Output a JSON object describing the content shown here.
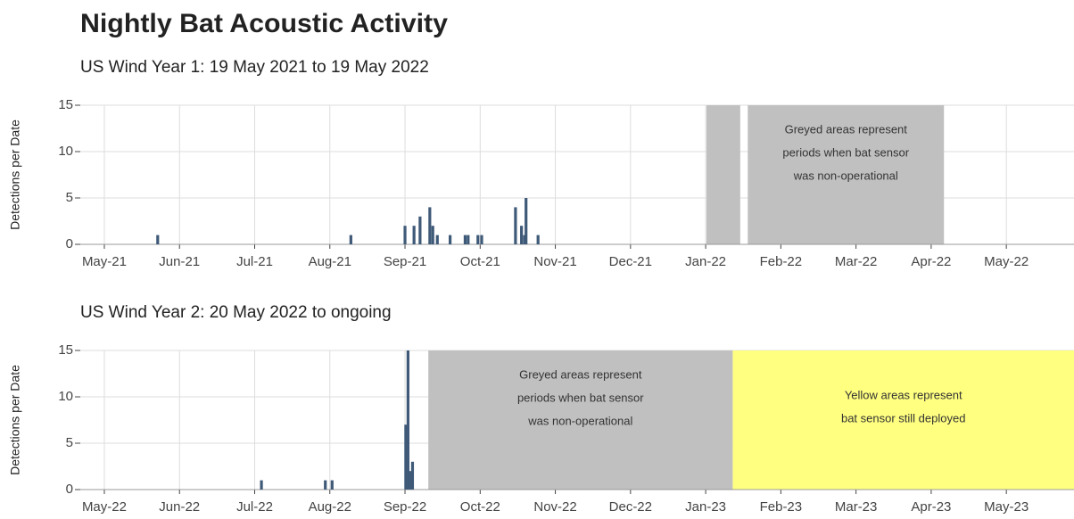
{
  "title": "Nightly Bat Acoustic Activity",
  "chart_data": [
    {
      "type": "bar",
      "subtitle": "US Wind Year 1: 19 May 2021 to 19 May 2022",
      "ylabel": "Detections per Date",
      "color": "#3f5a78",
      "grid": true,
      "x": [
        0.71,
        3.28,
        4.0,
        4.12,
        4.2,
        4.33,
        4.37,
        4.43,
        4.6,
        4.8,
        4.84,
        4.97,
        5.02,
        5.47,
        5.55,
        5.59,
        5.61,
        5.77
      ],
      "values": [
        1,
        1,
        2,
        2,
        3,
        4,
        2,
        1,
        1,
        1,
        1,
        1,
        1,
        4,
        2,
        1,
        5,
        1
      ],
      "xlim": [
        -0.32,
        12.9
      ],
      "ylim": [
        0,
        15
      ],
      "yticks": [
        0,
        5,
        10,
        15
      ],
      "xticks": [
        {
          "value": 0,
          "label": "May-21"
        },
        {
          "value": 1,
          "label": "Jun-21"
        },
        {
          "value": 2,
          "label": "Jul-21"
        },
        {
          "value": 3,
          "label": "Aug-21"
        },
        {
          "value": 4,
          "label": "Sep-21"
        },
        {
          "value": 5,
          "label": "Oct-21"
        },
        {
          "value": 6,
          "label": "Nov-21"
        },
        {
          "value": 7,
          "label": "Dec-21"
        },
        {
          "value": 8,
          "label": "Jan-22"
        },
        {
          "value": 9,
          "label": "Feb-22"
        },
        {
          "value": 10,
          "label": "Mar-22"
        },
        {
          "value": 11,
          "label": "Apr-22"
        },
        {
          "value": 12,
          "label": "May-22"
        }
      ],
      "regions": [
        {
          "start": 8.01,
          "end": 8.46,
          "color": "#c0c0c0"
        },
        {
          "start": 8.56,
          "end": 11.17,
          "color": "#c0c0c0",
          "label": [
            "Greyed areas represent",
            "periods when bat sensor",
            "was non-operational"
          ]
        }
      ]
    },
    {
      "type": "bar",
      "subtitle": "US Wind Year 2: 20 May 2022 to ongoing",
      "ylabel": "Detections per Date",
      "color": "#3f5a78",
      "grid": true,
      "x": [
        2.09,
        2.94,
        3.03,
        4.01,
        4.04,
        4.07,
        4.1
      ],
      "values": [
        1,
        1,
        1,
        7,
        15,
        2,
        3
      ],
      "xlim": [
        -0.32,
        12.9
      ],
      "ylim": [
        0,
        15
      ],
      "yticks": [
        0,
        5,
        10,
        15
      ],
      "xticks": [
        {
          "value": 0,
          "label": "May-22"
        },
        {
          "value": 1,
          "label": "Jun-22"
        },
        {
          "value": 2,
          "label": "Jul-22"
        },
        {
          "value": 3,
          "label": "Aug-22"
        },
        {
          "value": 4,
          "label": "Sep-22"
        },
        {
          "value": 5,
          "label": "Oct-22"
        },
        {
          "value": 6,
          "label": "Nov-22"
        },
        {
          "value": 7,
          "label": "Dec-22"
        },
        {
          "value": 8,
          "label": "Jan-23"
        },
        {
          "value": 9,
          "label": "Feb-23"
        },
        {
          "value": 10,
          "label": "Mar-23"
        },
        {
          "value": 11,
          "label": "Apr-23"
        },
        {
          "value": 12,
          "label": "May-23"
        }
      ],
      "regions": [
        {
          "start": 4.31,
          "end": 8.36,
          "color": "#c0c0c0",
          "label": [
            "Greyed areas represent",
            "periods when bat sensor",
            "was non-operational"
          ]
        },
        {
          "start": 8.36,
          "end": 12.9,
          "color": "#ffff80",
          "label": [
            "Yellow areas represent",
            "bat sensor still deployed"
          ]
        }
      ]
    }
  ]
}
